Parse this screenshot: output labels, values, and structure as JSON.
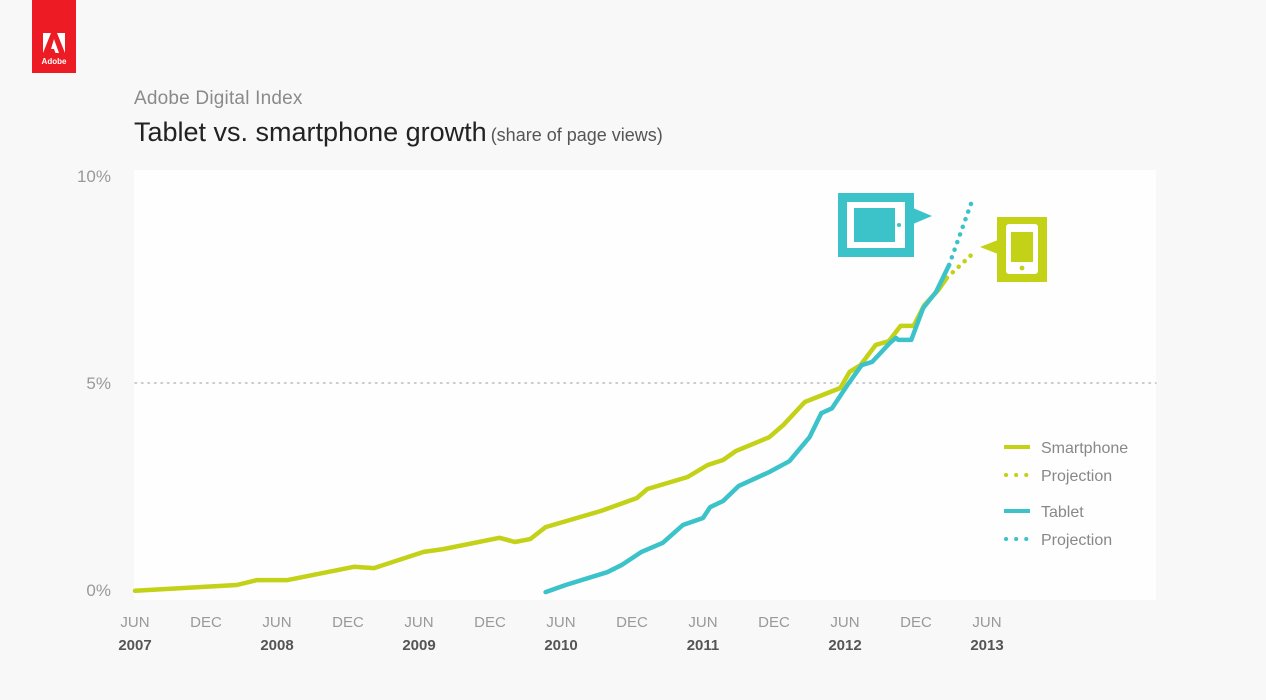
{
  "brand": {
    "logo_text": "Adobe",
    "logo_color": "#ed1c24"
  },
  "header": {
    "subtitle": "Adobe Digital Index",
    "title": "Tablet vs. smartphone growth",
    "title_note": "(share of page views)"
  },
  "chart_data": {
    "type": "line",
    "title": "Tablet vs. smartphone growth (share of page views)",
    "subtitle": "Adobe Digital Index",
    "xlabel": "",
    "ylabel": "Share of page views",
    "x_unit": "months since Jun 2007",
    "xlim": [
      0,
      72
    ],
    "ylim": [
      0,
      10
    ],
    "y_ticks": [
      {
        "value": 0,
        "label": "0%"
      },
      {
        "value": 5,
        "label": "5%"
      },
      {
        "value": 10,
        "label": "10%"
      }
    ],
    "reference_line": {
      "value": 5,
      "style": "dotted"
    },
    "x_ticks": [
      {
        "month": 0,
        "label": "JUN",
        "year": "2007"
      },
      {
        "month": 6,
        "label": "DEC",
        "year": ""
      },
      {
        "month": 12,
        "label": "JUN",
        "year": "2008"
      },
      {
        "month": 18,
        "label": "DEC",
        "year": ""
      },
      {
        "month": 24,
        "label": "JUN",
        "year": "2009"
      },
      {
        "month": 30,
        "label": "DEC",
        "year": ""
      },
      {
        "month": 36,
        "label": "JUN",
        "year": "2010"
      },
      {
        "month": 42,
        "label": "DEC",
        "year": ""
      },
      {
        "month": 48,
        "label": "JUN",
        "year": "2011"
      },
      {
        "month": 54,
        "label": "DEC",
        "year": ""
      },
      {
        "month": 60,
        "label": "JUN",
        "year": "2012"
      },
      {
        "month": 66,
        "label": "DEC",
        "year": ""
      },
      {
        "month": 72,
        "label": "JUN",
        "year": "2013"
      }
    ],
    "series": [
      {
        "name": "Smartphone",
        "color": "#c3d117",
        "style": "solid",
        "points": [
          [
            0,
            -0.02
          ],
          [
            8.6,
            0.12
          ],
          [
            10.3,
            0.24
          ],
          [
            12.9,
            0.24
          ],
          [
            18.5,
            0.56
          ],
          [
            20.2,
            0.53
          ],
          [
            24.4,
            0.92
          ],
          [
            26.1,
            0.99
          ],
          [
            30.8,
            1.26
          ],
          [
            32.1,
            1.16
          ],
          [
            33.4,
            1.23
          ],
          [
            34.7,
            1.52
          ],
          [
            39.4,
            1.91
          ],
          [
            42.4,
            2.22
          ],
          [
            43.3,
            2.44
          ],
          [
            46.7,
            2.73
          ],
          [
            48.4,
            3.02
          ],
          [
            49.7,
            3.14
          ],
          [
            50.8,
            3.36
          ],
          [
            53.6,
            3.69
          ],
          [
            54.8,
            3.99
          ],
          [
            56.6,
            4.54
          ],
          [
            59.6,
            4.88
          ],
          [
            60.4,
            5.27
          ],
          [
            61.3,
            5.43
          ],
          [
            62.6,
            5.92
          ],
          [
            63.7,
            6.01
          ],
          [
            64.7,
            6.38
          ],
          [
            65.8,
            6.38
          ],
          [
            66.7,
            6.88
          ],
          [
            67.9,
            7.25
          ],
          [
            68.6,
            7.54
          ]
        ]
      },
      {
        "name": "Projection",
        "parent": "Smartphone",
        "color": "#c3d117",
        "style": "dotted",
        "points": [
          [
            68.6,
            7.54
          ],
          [
            70.7,
            8.1
          ]
        ]
      },
      {
        "name": "Tablet",
        "color": "#3cc3c9",
        "style": "solid",
        "points": [
          [
            34.7,
            -0.05
          ],
          [
            36.4,
            0.12
          ],
          [
            39.9,
            0.43
          ],
          [
            41.1,
            0.6
          ],
          [
            42.8,
            0.92
          ],
          [
            44.6,
            1.14
          ],
          [
            46.3,
            1.57
          ],
          [
            48.0,
            1.74
          ],
          [
            48.6,
            2.0
          ],
          [
            49.7,
            2.15
          ],
          [
            51.0,
            2.51
          ],
          [
            53.6,
            2.85
          ],
          [
            55.3,
            3.11
          ],
          [
            57.0,
            3.69
          ],
          [
            58.0,
            4.27
          ],
          [
            58.9,
            4.39
          ],
          [
            60.2,
            4.95
          ],
          [
            61.4,
            5.43
          ],
          [
            62.3,
            5.51
          ],
          [
            63.8,
            5.97
          ],
          [
            64.3,
            6.09
          ],
          [
            64.5,
            6.04
          ],
          [
            65.6,
            6.04
          ],
          [
            66.6,
            6.81
          ],
          [
            67.7,
            7.2
          ],
          [
            68.8,
            7.85
          ]
        ]
      },
      {
        "name": "Projection",
        "parent": "Tablet",
        "color": "#3cc3c9",
        "style": "dotted",
        "points": [
          [
            68.8,
            7.85
          ],
          [
            70.7,
            9.37
          ]
        ]
      }
    ],
    "legend": {
      "position": "right",
      "entries": [
        {
          "label": "Smartphone",
          "color": "#c3d117",
          "style": "solid"
        },
        {
          "label": "Projection",
          "color": "#c3d117",
          "style": "dotted"
        },
        {
          "label": "Tablet",
          "color": "#3cc3c9",
          "style": "solid"
        },
        {
          "label": "Projection",
          "color": "#3cc3c9",
          "style": "dotted"
        }
      ]
    },
    "annotations": [
      {
        "type": "icon",
        "name": "tablet-icon",
        "color": "#3cc3c9",
        "points_to": "Tablet"
      },
      {
        "type": "icon",
        "name": "smartphone-icon",
        "color": "#c3d117",
        "points_to": "Smartphone"
      }
    ]
  }
}
